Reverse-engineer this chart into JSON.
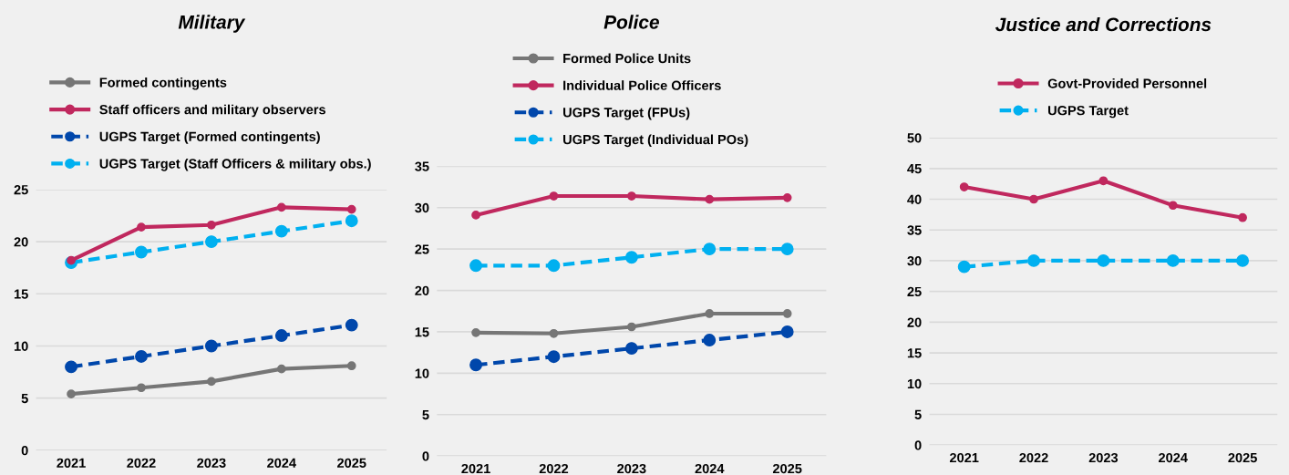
{
  "chart_data": [
    {
      "type": "line",
      "title": "Military",
      "categories": [
        "2021",
        "2022",
        "2023",
        "2024",
        "2025"
      ],
      "ylim": [
        0,
        25
      ],
      "yticks": [
        0,
        5,
        10,
        15,
        20,
        25
      ],
      "grid": "y",
      "legend": "top",
      "marker": "circle",
      "series": [
        {
          "name": "Formed contingents",
          "color": "#767676",
          "values": [
            5.4,
            6.0,
            6.6,
            7.8,
            8.1
          ],
          "line_style": "solid"
        },
        {
          "name": "Staff officers and military observers",
          "color": "#c0285e",
          "values": [
            18.2,
            21.4,
            21.6,
            23.3,
            23.1
          ],
          "line_style": "solid"
        },
        {
          "name": "UGPS Target (Formed contingents)",
          "color": "#0047ab",
          "values": [
            8,
            9,
            10,
            11,
            12
          ],
          "line_style": "dashed"
        },
        {
          "name": "UGPS Target (Staff Officers & military obs.)",
          "color": "#00b0f0",
          "values": [
            18,
            19,
            20,
            21,
            22
          ],
          "line_style": "dashed"
        }
      ]
    },
    {
      "type": "line",
      "title": "Police",
      "categories": [
        "2021",
        "2022",
        "2023",
        "2024",
        "2025"
      ],
      "ylim": [
        0,
        35
      ],
      "yticks": [
        0,
        5,
        10,
        15,
        20,
        25,
        30,
        35
      ],
      "grid": "y",
      "legend": "top",
      "marker": "circle",
      "series": [
        {
          "name": "Formed Police Units",
          "color": "#767676",
          "values": [
            14.9,
            14.8,
            15.6,
            17.2,
            17.2
          ],
          "line_style": "solid"
        },
        {
          "name": "Individual Police Officers",
          "color": "#c0285e",
          "values": [
            29.1,
            31.4,
            31.4,
            31.0,
            31.2
          ],
          "line_style": "solid"
        },
        {
          "name": "UGPS Target (FPUs)",
          "color": "#0047ab",
          "values": [
            11,
            12,
            13,
            14,
            15
          ],
          "line_style": "dashed"
        },
        {
          "name": "UGPS Target (Individual POs)",
          "color": "#00b0f0",
          "values": [
            23,
            23,
            24,
            25,
            25
          ],
          "line_style": "dashed"
        }
      ]
    },
    {
      "type": "line",
      "title": "Justice and Corrections",
      "categories": [
        "2021",
        "2022",
        "2023",
        "2024",
        "2025"
      ],
      "ylim": [
        0,
        50
      ],
      "yticks": [
        0,
        5,
        10,
        15,
        20,
        25,
        30,
        35,
        40,
        45,
        50
      ],
      "grid": "y",
      "legend": "top",
      "marker": "circle",
      "series": [
        {
          "name": "Govt-Provided Personnel",
          "color": "#c0285e",
          "values": [
            42,
            40,
            43,
            39,
            37
          ],
          "line_style": "solid"
        },
        {
          "name": "UGPS Target",
          "color": "#00b0f0",
          "values": [
            29,
            30,
            30,
            30,
            30
          ],
          "line_style": "dashed"
        }
      ]
    }
  ]
}
